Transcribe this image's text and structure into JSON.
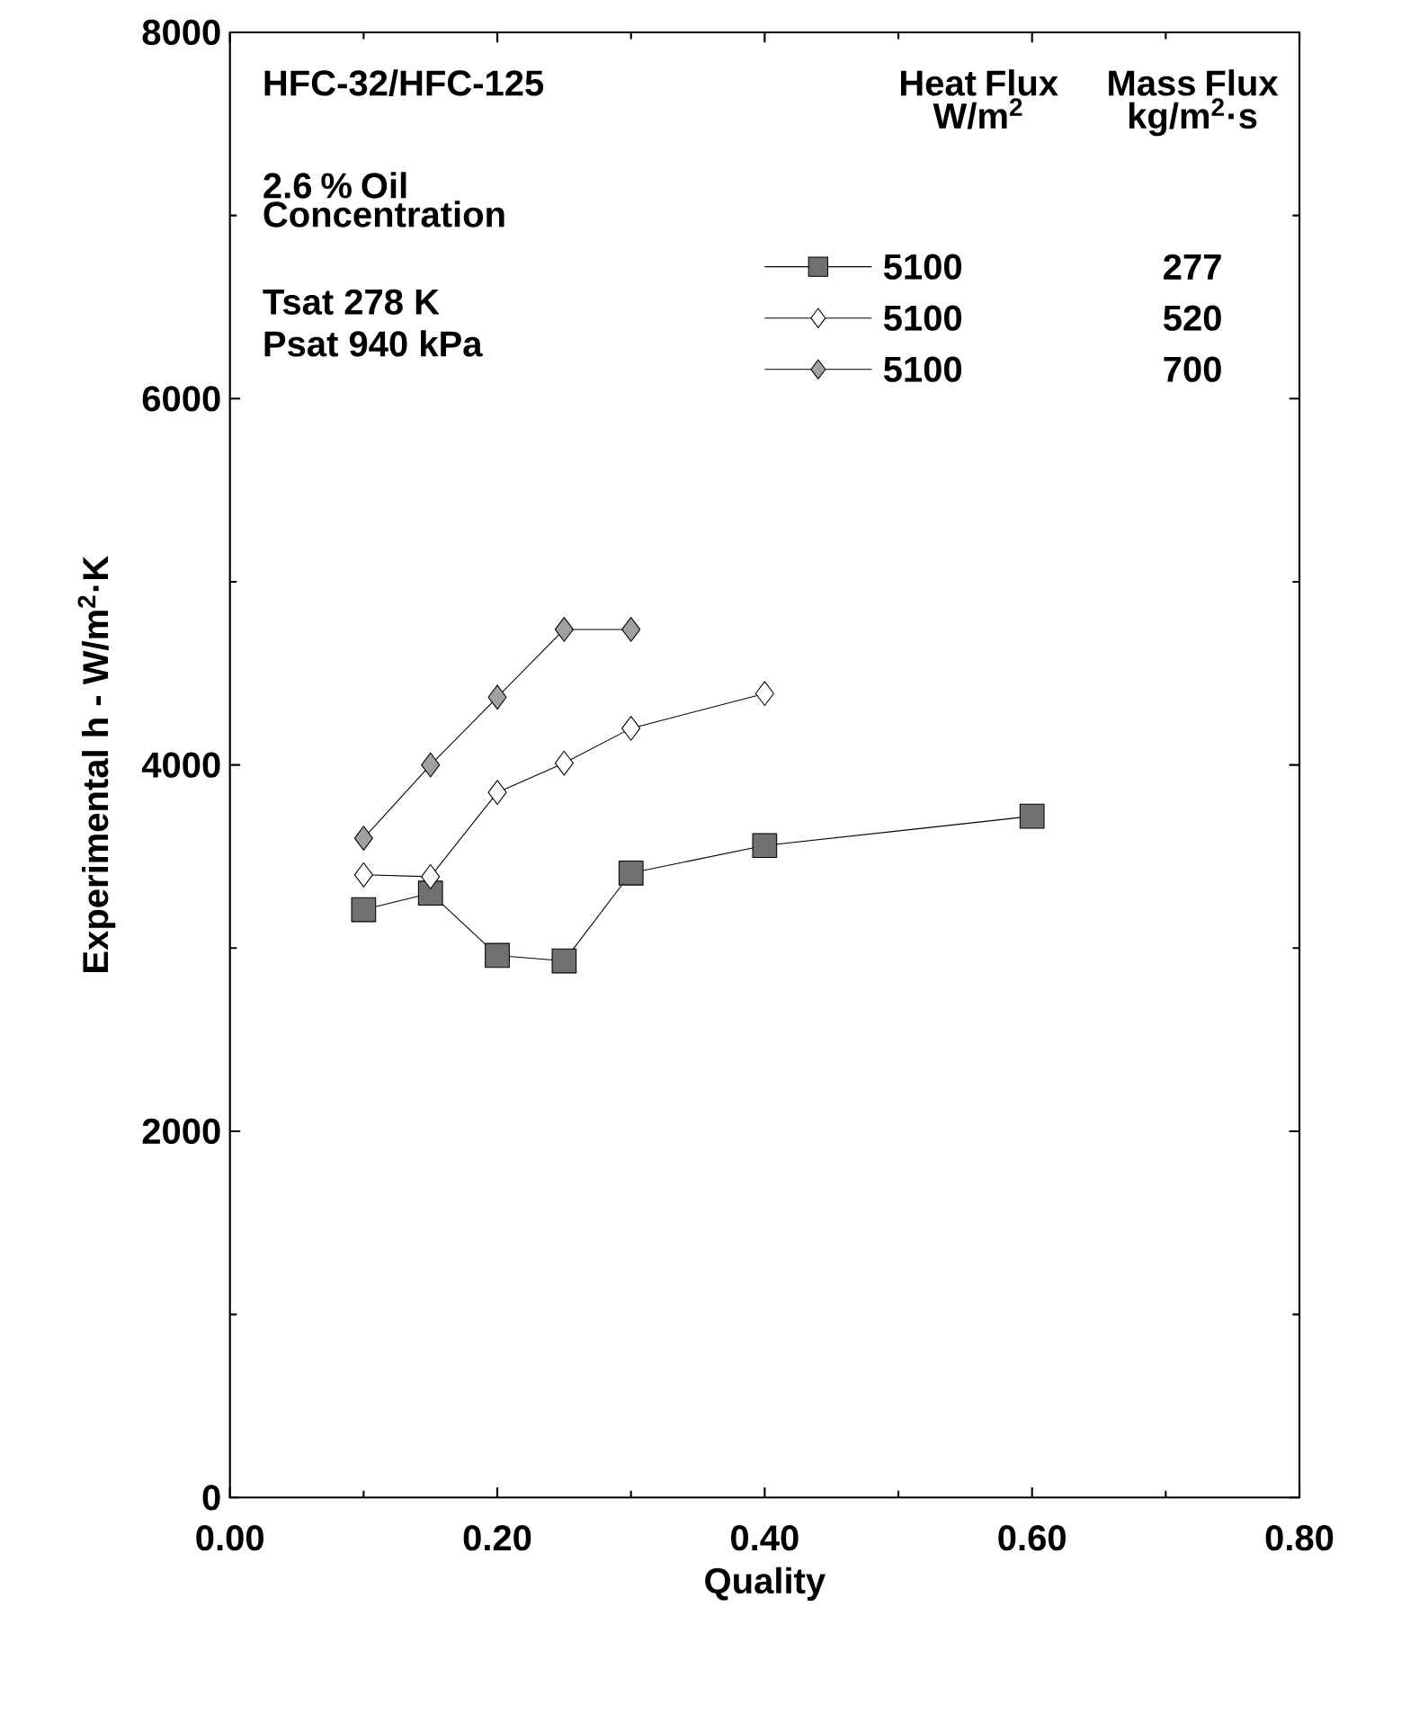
{
  "chart_data": {
    "type": "line",
    "xlabel": "Quality",
    "ylabel": "Experimental h - W/m$^{2}$·K",
    "xlim": [
      0,
      0.8
    ],
    "ylim": [
      0,
      8000
    ],
    "xticks": [
      {
        "value": 0,
        "label": "0.00"
      },
      {
        "value": 0.2,
        "label": "0.20"
      },
      {
        "value": 0.4,
        "label": "0.40"
      },
      {
        "value": 0.6,
        "label": "0.60"
      },
      {
        "value": 0.8,
        "label": "0.80"
      }
    ],
    "yticks": [
      0,
      2000,
      4000,
      6000,
      8000
    ],
    "grid": false,
    "legend": "top right",
    "legend_title": "Heat Flux W/m$^{2}$",
    "annotations": [
      "HFC-32/HFC-125",
      "2.6 % Oil Concentration",
      "Tsat 278 K",
      "Psat 940 kPa",
      "Mass Flux kg/m$^{2}$·s",
      "277",
      "520",
      "700"
    ],
    "series": [
      {
        "name": "5100",
        "color": "#707070",
        "marker": "square",
        "x": [
          0.1,
          0.15,
          0.2,
          0.25,
          0.3,
          0.4,
          0.6
        ],
        "values": [
          3210,
          3300,
          2960,
          2930,
          3410,
          3560,
          3720
        ]
      },
      {
        "name": "5100",
        "color": "#ffffff",
        "marker": "diamond",
        "x": [
          0.1,
          0.15,
          0.2,
          0.25,
          0.3,
          0.4
        ],
        "values": [
          3400,
          3390,
          3850,
          4010,
          4200,
          4390
        ]
      },
      {
        "name": "5100",
        "color": "#a0a0a0",
        "marker": "diamond",
        "x": [
          0.1,
          0.15,
          0.2,
          0.25,
          0.3
        ],
        "values": [
          3600,
          4000,
          4370,
          4740,
          4740
        ]
      }
    ]
  }
}
